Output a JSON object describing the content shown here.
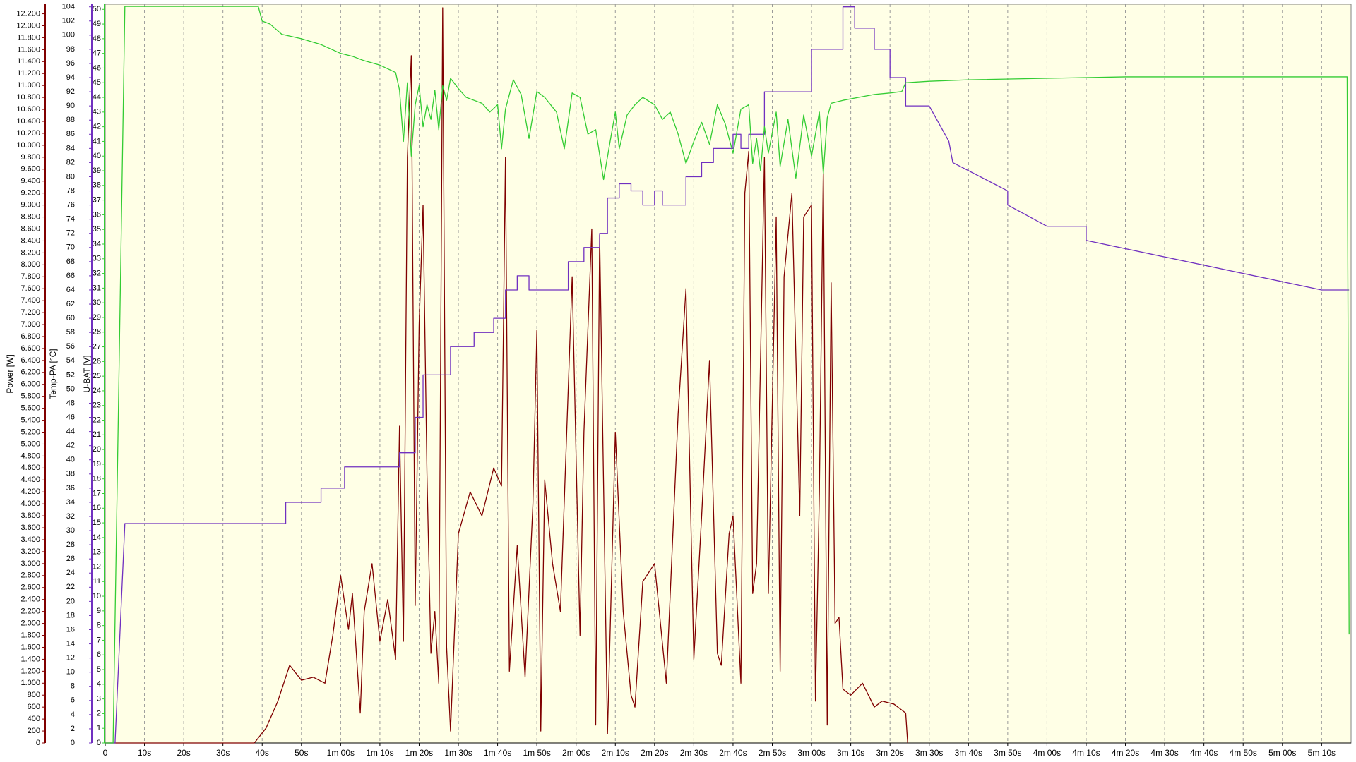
{
  "chart_data": {
    "type": "line",
    "ylabel": "Power [W]",
    "y2label": "Temp-PA [°C]",
    "y3label": "U-BAT [V]",
    "xlim": [
      0,
      317.5
    ],
    "xticks": [
      0,
      {
        "value": 10,
        "label": "10s"
      },
      {
        "value": 20,
        "label": "20s"
      },
      {
        "value": 30,
        "label": "30s"
      },
      {
        "value": 40,
        "label": "40s"
      },
      {
        "value": 50,
        "label": "50s"
      },
      {
        "value": 60,
        "label": "1m 00s"
      },
      {
        "value": 70,
        "label": "1m 10s"
      },
      {
        "value": 80,
        "label": "1m 20s"
      },
      {
        "value": 90,
        "label": "1m 30s"
      },
      {
        "value": 100,
        "label": "1m 40s"
      },
      {
        "value": 110,
        "label": "1m 50s"
      },
      {
        "value": 120,
        "label": "2m 00s"
      },
      {
        "value": 130,
        "label": "2m 10s"
      },
      {
        "value": 140,
        "label": "2m 20s"
      },
      {
        "value": 150,
        "label": "2m 30s"
      },
      {
        "value": 160,
        "label": "2m 40s"
      },
      {
        "value": 170,
        "label": "2m 50s"
      },
      {
        "value": 180,
        "label": "3m 00s"
      },
      {
        "value": 190,
        "label": "3m 10s"
      },
      {
        "value": 200,
        "label": "3m 20s"
      },
      {
        "value": 210,
        "label": "3m 30s"
      },
      {
        "value": 220,
        "label": "3m 40s"
      },
      {
        "value": 230,
        "label": "3m 50s"
      },
      {
        "value": 240,
        "label": "4m 00s"
      },
      {
        "value": 250,
        "label": "4m 10s"
      },
      {
        "value": 260,
        "label": "4m 20s"
      },
      {
        "value": 270,
        "label": "4m 30s"
      },
      {
        "value": 280,
        "label": "4m 40s"
      },
      {
        "value": 290,
        "label": "4m 50s"
      },
      {
        "value": 300,
        "label": "5m 00s"
      },
      {
        "value": 310,
        "label": "5m 10s"
      }
    ],
    "ylim": [
      0,
      12360
    ],
    "yticks": [
      0,
      200,
      400,
      600,
      800,
      {
        "value": 1000,
        "label": "1.000"
      },
      {
        "value": 1200,
        "label": "1.200"
      },
      {
        "value": 1400,
        "label": "1.400"
      },
      {
        "value": 1600,
        "label": "1.600"
      },
      {
        "value": 1800,
        "label": "1.800"
      },
      {
        "value": 2000,
        "label": "2.000"
      },
      {
        "value": 2200,
        "label": "2.200"
      },
      {
        "value": 2400,
        "label": "2.400"
      },
      {
        "value": 2600,
        "label": "2.600"
      },
      {
        "value": 2800,
        "label": "2.800"
      },
      {
        "value": 3000,
        "label": "3.000"
      },
      {
        "value": 3200,
        "label": "3.200"
      },
      {
        "value": 3400,
        "label": "3.400"
      },
      {
        "value": 3600,
        "label": "3.600"
      },
      {
        "value": 3800,
        "label": "3.800"
      },
      {
        "value": 4000,
        "label": "4.000"
      },
      {
        "value": 4200,
        "label": "4.200"
      },
      {
        "value": 4400,
        "label": "4.400"
      },
      {
        "value": 4600,
        "label": "4.600"
      },
      {
        "value": 4800,
        "label": "4.800"
      },
      {
        "value": 5000,
        "label": "5.000"
      },
      {
        "value": 5200,
        "label": "5.200"
      },
      {
        "value": 5400,
        "label": "5.400"
      },
      {
        "value": 5600,
        "label": "5.600"
      },
      {
        "value": 5800,
        "label": "5.800"
      },
      {
        "value": 6000,
        "label": "6.000"
      },
      {
        "value": 6200,
        "label": "6.200"
      },
      {
        "value": 6400,
        "label": "6.400"
      },
      {
        "value": 6600,
        "label": "6.600"
      },
      {
        "value": 6800,
        "label": "6.800"
      },
      {
        "value": 7000,
        "label": "7.000"
      },
      {
        "value": 7200,
        "label": "7.200"
      },
      {
        "value": 7400,
        "label": "7.400"
      },
      {
        "value": 7600,
        "label": "7.600"
      },
      {
        "value": 7800,
        "label": "7.800"
      },
      {
        "value": 8000,
        "label": "8.000"
      },
      {
        "value": 8200,
        "label": "8.200"
      },
      {
        "value": 8400,
        "label": "8.400"
      },
      {
        "value": 8600,
        "label": "8.600"
      },
      {
        "value": 8800,
        "label": "8.800"
      },
      {
        "value": 9000,
        "label": "9.000"
      },
      {
        "value": 9200,
        "label": "9.200"
      },
      {
        "value": 9400,
        "label": "9.400"
      },
      {
        "value": 9600,
        "label": "9.600"
      },
      {
        "value": 9800,
        "label": "9.800"
      },
      {
        "value": 10000,
        "label": "10.000"
      },
      {
        "value": 10200,
        "label": "10.200"
      },
      {
        "value": 10400,
        "label": "10.400"
      },
      {
        "value": 10600,
        "label": "10.600"
      },
      {
        "value": 10800,
        "label": "10.800"
      },
      {
        "value": 11000,
        "label": "11.000"
      },
      {
        "value": 11200,
        "label": "11.200"
      },
      {
        "value": 11400,
        "label": "11.400"
      },
      {
        "value": 11600,
        "label": "11.600"
      },
      {
        "value": 11800,
        "label": "11.800"
      },
      {
        "value": 12000,
        "label": "12.000"
      },
      {
        "value": 12200,
        "label": "12.200"
      }
    ],
    "y2lim": [
      0,
      104.37
    ],
    "y2ticks": [
      0,
      2,
      4,
      6,
      8,
      10,
      12,
      14,
      16,
      18,
      20,
      22,
      24,
      26,
      28,
      30,
      32,
      34,
      36,
      38,
      40,
      42,
      44,
      46,
      48,
      50,
      52,
      54,
      56,
      58,
      60,
      62,
      64,
      66,
      68,
      70,
      72,
      74,
      76,
      78,
      80,
      82,
      84,
      86,
      88,
      90,
      92,
      94,
      96,
      98,
      100,
      102,
      104
    ],
    "y3lim": [
      0,
      50.35
    ],
    "y3ticks": [
      0,
      1,
      2,
      3,
      4,
      5,
      6,
      7,
      8,
      9,
      10,
      11,
      12,
      13,
      14,
      15,
      16,
      17,
      18,
      19,
      20,
      21,
      22,
      23,
      24,
      25,
      26,
      27,
      28,
      29,
      30,
      31,
      32,
      33,
      34,
      35,
      36,
      37,
      38,
      39,
      40,
      41,
      42,
      43,
      44,
      45,
      46,
      47,
      48,
      49,
      50
    ],
    "grid": true,
    "series": [
      {
        "name": "Power",
        "color": "#800000",
        "axis": "y",
        "x": [
          0,
          38,
          41,
          44,
          47,
          50,
          53,
          56,
          58,
          60,
          62,
          63,
          65,
          66,
          68,
          70,
          72,
          74,
          75,
          76,
          77,
          78,
          79,
          80,
          81,
          82,
          83,
          84,
          85,
          86,
          87,
          88,
          90,
          93,
          96,
          99,
          101,
          102,
          103,
          105,
          107,
          109,
          110,
          111,
          112,
          114,
          116,
          119,
          121,
          122,
          124,
          125,
          126,
          128,
          130,
          132,
          134,
          135,
          137,
          140,
          143,
          146,
          148,
          150,
          152,
          154,
          156,
          157,
          159,
          160,
          162,
          163,
          164,
          165,
          166,
          168,
          169,
          171,
          172,
          173,
          175,
          177,
          178,
          180,
          181,
          182,
          183,
          184,
          185,
          186,
          187,
          188,
          190,
          193,
          196,
          198,
          201,
          203,
          204,
          204.5
        ],
        "values": [
          0,
          0,
          250,
          700,
          1300,
          1050,
          1100,
          1000,
          1800,
          2800,
          1900,
          2500,
          500,
          2200,
          3000,
          1700,
          2400,
          1400,
          5300,
          1700,
          9800,
          11500,
          2300,
          7000,
          9000,
          4500,
          1500,
          2200,
          1000,
          12300,
          1600,
          200,
          3500,
          4200,
          3800,
          4600,
          4300,
          9800,
          1200,
          3300,
          1100,
          4000,
          6900,
          200,
          4400,
          3000,
          2200,
          7800,
          1800,
          5200,
          8600,
          300,
          8500,
          150,
          5200,
          2200,
          800,
          600,
          2700,
          3000,
          1000,
          5500,
          7600,
          1400,
          3800,
          6400,
          1500,
          1300,
          3500,
          3800,
          1000,
          9200,
          9900,
          2500,
          3000,
          9800,
          2500,
          8800,
          1200,
          7800,
          9200,
          3800,
          8800,
          9000,
          700,
          4200,
          9600,
          300,
          7700,
          2000,
          2100,
          900,
          800,
          1000,
          600,
          700,
          650,
          550,
          500,
          0
        ]
      },
      {
        "name": "Temp-PA",
        "color": "#7030c0",
        "axis": "y2",
        "x": [
          0,
          2.5,
          5,
          46,
          46,
          55,
          55,
          61,
          61,
          75,
          75,
          79,
          79,
          81,
          81,
          88,
          88,
          94,
          94,
          99,
          99,
          102,
          102,
          105,
          105,
          108,
          108,
          118,
          118,
          122,
          122,
          126,
          126,
          128,
          128,
          131,
          131,
          134,
          134,
          137,
          137,
          140,
          140,
          142,
          142,
          148,
          148,
          152,
          152,
          155,
          155,
          160,
          160,
          162,
          162,
          164,
          164,
          168,
          168,
          180,
          180,
          188,
          188,
          191,
          191,
          196,
          196,
          200,
          200,
          204,
          204,
          210,
          212,
          215,
          216,
          230,
          230,
          240,
          250,
          250,
          310,
          317
        ],
        "values": [
          0,
          0,
          31,
          31,
          34,
          34,
          36,
          36,
          39,
          39,
          41,
          41,
          46,
          46,
          52,
          52,
          56,
          56,
          58,
          58,
          60,
          60,
          64,
          64,
          66,
          66,
          64,
          64,
          68,
          68,
          70,
          70,
          72,
          72,
          77,
          77,
          79,
          79,
          78,
          78,
          76,
          76,
          78,
          78,
          76,
          76,
          80,
          80,
          82,
          82,
          84,
          84,
          86,
          86,
          84,
          84,
          86,
          86,
          92,
          92,
          98,
          98,
          104,
          104,
          101,
          101,
          98,
          98,
          94,
          94,
          90,
          90,
          88,
          85,
          82,
          78,
          76,
          73,
          73,
          71,
          64,
          64
        ]
      },
      {
        "name": "U-BAT",
        "color": "#33cc33",
        "axis": "y3",
        "x": [
          0,
          2,
          5,
          39,
          40,
          42,
          45,
          50,
          55,
          60,
          63,
          66,
          70,
          74,
          75,
          76,
          77,
          78,
          79,
          80,
          81,
          82,
          83,
          84,
          85,
          86,
          87,
          88,
          90,
          92,
          94,
          96,
          98,
          100,
          101,
          102,
          104,
          106,
          108,
          110,
          112,
          115,
          117,
          119,
          121,
          123,
          125,
          127,
          129,
          130,
          131,
          133,
          135,
          137,
          140,
          142,
          144,
          146,
          148,
          150,
          152,
          154,
          156,
          158,
          160,
          162,
          164,
          165,
          166,
          167,
          168,
          169,
          171,
          172,
          174,
          176,
          178,
          180,
          182,
          183,
          184,
          185,
          188,
          192,
          196,
          200,
          203,
          204,
          210,
          220,
          240,
          260,
          316.5,
          317
        ],
        "values": [
          0,
          0,
          50.2,
          50.2,
          49.2,
          49.0,
          48.3,
          48.0,
          47.6,
          47.0,
          46.8,
          46.5,
          46.2,
          45.7,
          44.5,
          41,
          45,
          40,
          43.5,
          44.8,
          42,
          43.5,
          42.5,
          44.5,
          41.8,
          44.8,
          43.8,
          45.3,
          44.6,
          44.0,
          43.8,
          43.6,
          43.0,
          43.5,
          40.5,
          43.2,
          45.2,
          44.2,
          41.2,
          44.4,
          44.0,
          43.0,
          40.5,
          44.3,
          44.0,
          41.5,
          41.8,
          38.4,
          41.5,
          43.0,
          40.5,
          42.8,
          43.5,
          44.0,
          43.5,
          42.5,
          43.0,
          41.5,
          39.5,
          41.0,
          42.3,
          40.8,
          43.5,
          42.2,
          40.2,
          43.2,
          43.5,
          39.5,
          41.2,
          39.0,
          42.0,
          40.2,
          43.0,
          39.3,
          42.5,
          38.5,
          42.8,
          40.0,
          43.0,
          38.8,
          42.6,
          43.6,
          43.8,
          44.0,
          44.2,
          44.3,
          44.4,
          45.0,
          45.1,
          45.2,
          45.3,
          45.4,
          45.4,
          7.4
        ]
      }
    ]
  }
}
